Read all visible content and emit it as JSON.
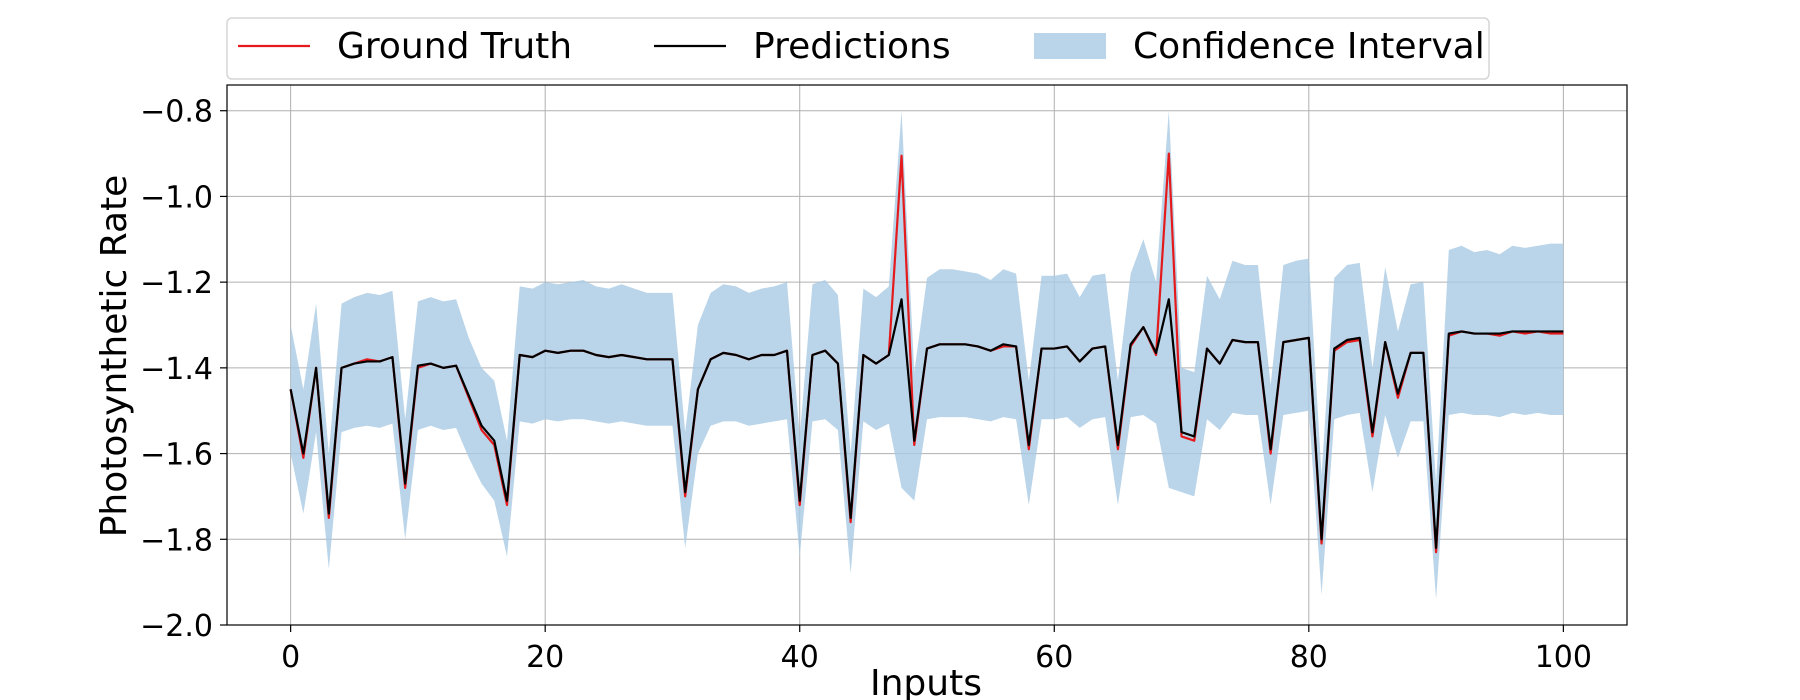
{
  "chart_data": {
    "type": "line",
    "title": "",
    "xlabel": "Inputs",
    "ylabel": "Photosynthetic Rate",
    "xlim": [
      -5,
      105
    ],
    "ylim": [
      -2.0,
      -0.74
    ],
    "xticks": [
      0,
      20,
      40,
      60,
      80,
      100
    ],
    "yticks": [
      -2.0,
      -1.8,
      -1.6,
      -1.4,
      -1.2,
      -1.0,
      -0.8
    ],
    "xtick_labels": [
      "0",
      "20",
      "40",
      "60",
      "80",
      "100"
    ],
    "ytick_labels": [
      "−2.0",
      "−1.8",
      "−1.6",
      "−1.4",
      "−1.2",
      "−1.0",
      "−0.8"
    ],
    "grid": true,
    "legend_position": "top-center",
    "legend": [
      "Ground Truth",
      "Predictions",
      "Confidence Interval"
    ],
    "colors": {
      "ground_truth": "#e41a1c",
      "predictions": "#000000",
      "confidence_interval": "#a9cbe4",
      "grid": "#b0b0b0"
    },
    "x": [
      0,
      1,
      2,
      3,
      4,
      5,
      6,
      7,
      8,
      9,
      10,
      11,
      12,
      13,
      14,
      15,
      16,
      17,
      18,
      19,
      20,
      21,
      22,
      23,
      24,
      25,
      26,
      27,
      28,
      29,
      30,
      31,
      32,
      33,
      34,
      35,
      36,
      37,
      38,
      39,
      40,
      41,
      42,
      43,
      44,
      45,
      46,
      47,
      48,
      49,
      50,
      51,
      52,
      53,
      54,
      55,
      56,
      57,
      58,
      59,
      60,
      61,
      62,
      63,
      64,
      65,
      66,
      67,
      68,
      69,
      70,
      71,
      72,
      73,
      74,
      75,
      76,
      77,
      78,
      79,
      80,
      81,
      82,
      83,
      84,
      85,
      86,
      87,
      88,
      89,
      90,
      91,
      92,
      93,
      94,
      95,
      96,
      97,
      98,
      99,
      100
    ],
    "series": [
      {
        "name": "Ground Truth",
        "values": [
          -1.45,
          -1.61,
          -1.4,
          -1.75,
          -1.4,
          -1.39,
          -1.38,
          -1.385,
          -1.375,
          -1.68,
          -1.4,
          -1.39,
          -1.4,
          -1.395,
          -1.47,
          -1.545,
          -1.58,
          -1.72,
          -1.37,
          -1.375,
          -1.36,
          -1.365,
          -1.36,
          -1.36,
          -1.37,
          -1.375,
          -1.37,
          -1.375,
          -1.38,
          -1.38,
          -1.38,
          -1.7,
          -1.45,
          -1.38,
          -1.365,
          -1.37,
          -1.38,
          -1.37,
          -1.37,
          -1.36,
          -1.72,
          -1.37,
          -1.36,
          -1.39,
          -1.76,
          -1.37,
          -1.39,
          -1.37,
          -0.905,
          -1.58,
          -1.355,
          -1.345,
          -1.345,
          -1.345,
          -1.35,
          -1.36,
          -1.35,
          -1.35,
          -1.59,
          -1.355,
          -1.355,
          -1.35,
          -1.385,
          -1.355,
          -1.35,
          -1.59,
          -1.35,
          -1.305,
          -1.37,
          -0.9,
          -1.56,
          -1.57,
          -1.355,
          -1.39,
          -1.335,
          -1.34,
          -1.34,
          -1.6,
          -1.34,
          -1.335,
          -1.33,
          -1.81,
          -1.36,
          -1.34,
          -1.335,
          -1.56,
          -1.34,
          -1.47,
          -1.365,
          -1.365,
          -1.83,
          -1.325,
          -1.315,
          -1.32,
          -1.32,
          -1.325,
          -1.315,
          -1.32,
          -1.315,
          -1.32,
          -1.32
        ]
      },
      {
        "name": "Predictions",
        "values": [
          -1.45,
          -1.6,
          -1.4,
          -1.74,
          -1.4,
          -1.39,
          -1.385,
          -1.385,
          -1.375,
          -1.67,
          -1.395,
          -1.39,
          -1.4,
          -1.395,
          -1.465,
          -1.535,
          -1.57,
          -1.71,
          -1.37,
          -1.375,
          -1.36,
          -1.365,
          -1.36,
          -1.36,
          -1.37,
          -1.375,
          -1.37,
          -1.375,
          -1.38,
          -1.38,
          -1.38,
          -1.69,
          -1.45,
          -1.38,
          -1.365,
          -1.37,
          -1.38,
          -1.37,
          -1.37,
          -1.36,
          -1.71,
          -1.37,
          -1.36,
          -1.39,
          -1.75,
          -1.37,
          -1.39,
          -1.37,
          -1.24,
          -1.57,
          -1.355,
          -1.345,
          -1.345,
          -1.345,
          -1.35,
          -1.36,
          -1.345,
          -1.35,
          -1.58,
          -1.355,
          -1.355,
          -1.35,
          -1.385,
          -1.355,
          -1.35,
          -1.58,
          -1.345,
          -1.305,
          -1.365,
          -1.24,
          -1.55,
          -1.56,
          -1.355,
          -1.39,
          -1.335,
          -1.34,
          -1.34,
          -1.59,
          -1.34,
          -1.335,
          -1.33,
          -1.8,
          -1.355,
          -1.335,
          -1.33,
          -1.55,
          -1.34,
          -1.46,
          -1.365,
          -1.365,
          -1.82,
          -1.32,
          -1.315,
          -1.32,
          -1.32,
          -1.32,
          -1.315,
          -1.315,
          -1.315,
          -1.315,
          -1.315
        ]
      }
    ],
    "confidence_interval": {
      "name": "Confidence Interval",
      "upper": [
        -1.3,
        -1.45,
        -1.25,
        -1.6,
        -1.25,
        -1.235,
        -1.225,
        -1.23,
        -1.22,
        -1.52,
        -1.245,
        -1.235,
        -1.245,
        -1.24,
        -1.33,
        -1.4,
        -1.43,
        -1.57,
        -1.21,
        -1.215,
        -1.2,
        -1.205,
        -1.2,
        -1.195,
        -1.21,
        -1.215,
        -1.205,
        -1.215,
        -1.225,
        -1.225,
        -1.225,
        -1.55,
        -1.3,
        -1.225,
        -1.205,
        -1.21,
        -1.225,
        -1.215,
        -1.21,
        -1.2,
        -1.56,
        -1.205,
        -1.195,
        -1.23,
        -1.6,
        -1.215,
        -1.235,
        -1.21,
        -0.8,
        -1.41,
        -1.19,
        -1.17,
        -1.17,
        -1.175,
        -1.18,
        -1.195,
        -1.17,
        -1.18,
        -1.43,
        -1.185,
        -1.185,
        -1.18,
        -1.235,
        -1.185,
        -1.18,
        -1.43,
        -1.18,
        -1.1,
        -1.2,
        -0.8,
        -1.4,
        -1.41,
        -1.185,
        -1.24,
        -1.15,
        -1.16,
        -1.16,
        -1.44,
        -1.16,
        -1.15,
        -1.145,
        -1.65,
        -1.19,
        -1.16,
        -1.155,
        -1.4,
        -1.165,
        -1.315,
        -1.205,
        -1.2,
        -1.67,
        -1.125,
        -1.115,
        -1.13,
        -1.125,
        -1.135,
        -1.115,
        -1.12,
        -1.115,
        -1.11,
        -1.11
      ],
      "lower": [
        -1.6,
        -1.74,
        -1.55,
        -1.87,
        -1.55,
        -1.54,
        -1.535,
        -1.54,
        -1.53,
        -1.8,
        -1.545,
        -1.535,
        -1.545,
        -1.54,
        -1.61,
        -1.67,
        -1.71,
        -1.84,
        -1.525,
        -1.53,
        -1.52,
        -1.525,
        -1.52,
        -1.52,
        -1.525,
        -1.53,
        -1.525,
        -1.53,
        -1.535,
        -1.535,
        -1.535,
        -1.82,
        -1.6,
        -1.535,
        -1.525,
        -1.525,
        -1.535,
        -1.53,
        -1.525,
        -1.52,
        -1.84,
        -1.525,
        -1.52,
        -1.545,
        -1.88,
        -1.525,
        -1.545,
        -1.53,
        -1.68,
        -1.71,
        -1.52,
        -1.515,
        -1.515,
        -1.515,
        -1.52,
        -1.525,
        -1.515,
        -1.52,
        -1.72,
        -1.52,
        -1.52,
        -1.515,
        -1.54,
        -1.52,
        -1.515,
        -1.72,
        -1.515,
        -1.51,
        -1.53,
        -1.68,
        -1.69,
        -1.7,
        -1.52,
        -1.545,
        -1.505,
        -1.51,
        -1.51,
        -1.72,
        -1.51,
        -1.505,
        -1.5,
        -1.93,
        -1.52,
        -1.51,
        -1.505,
        -1.69,
        -1.51,
        -1.61,
        -1.525,
        -1.525,
        -1.94,
        -1.51,
        -1.505,
        -1.51,
        -1.51,
        -1.515,
        -1.505,
        -1.51,
        -1.505,
        -1.51,
        -1.51
      ]
    }
  }
}
